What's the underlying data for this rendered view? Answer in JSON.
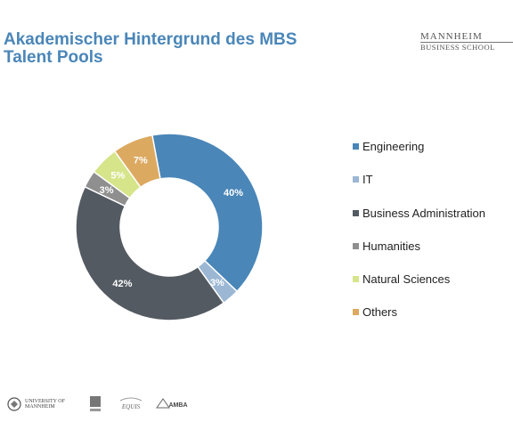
{
  "header": {
    "title": "Akademischer Hintergrund des MBS Talent Pools",
    "brand_line1": "MANNHEIM",
    "brand_line2": "BUSINESS SCHOOL"
  },
  "chart_data": {
    "type": "pie",
    "donut": true,
    "title": "Akademischer Hintergrund des MBS Talent Pools",
    "legend_position": "right",
    "series": [
      {
        "name": "Engineering",
        "value": 40,
        "label": "40%",
        "color": "#4a86b8"
      },
      {
        "name": "IT",
        "value": 3,
        "label": "3%",
        "color": "#9bb7d4"
      },
      {
        "name": "Business Administration",
        "value": 42,
        "label": "42%",
        "color": "#545a62"
      },
      {
        "name": "Humanities",
        "value": 3,
        "label": "3%",
        "color": "#8f8f8f"
      },
      {
        "name": "Natural Sciences",
        "value": 5,
        "label": "5%",
        "color": "#d6e48a"
      },
      {
        "name": "Others",
        "value": 7,
        "label": "7%",
        "color": "#dca961"
      }
    ]
  },
  "footer": {
    "university_logo_text": "UNIVERSITY OF MANNHEIM",
    "logos": [
      "UNIVERSITY OF MANNHEIM",
      "AACSB",
      "EQUIS",
      "AMBA"
    ]
  }
}
